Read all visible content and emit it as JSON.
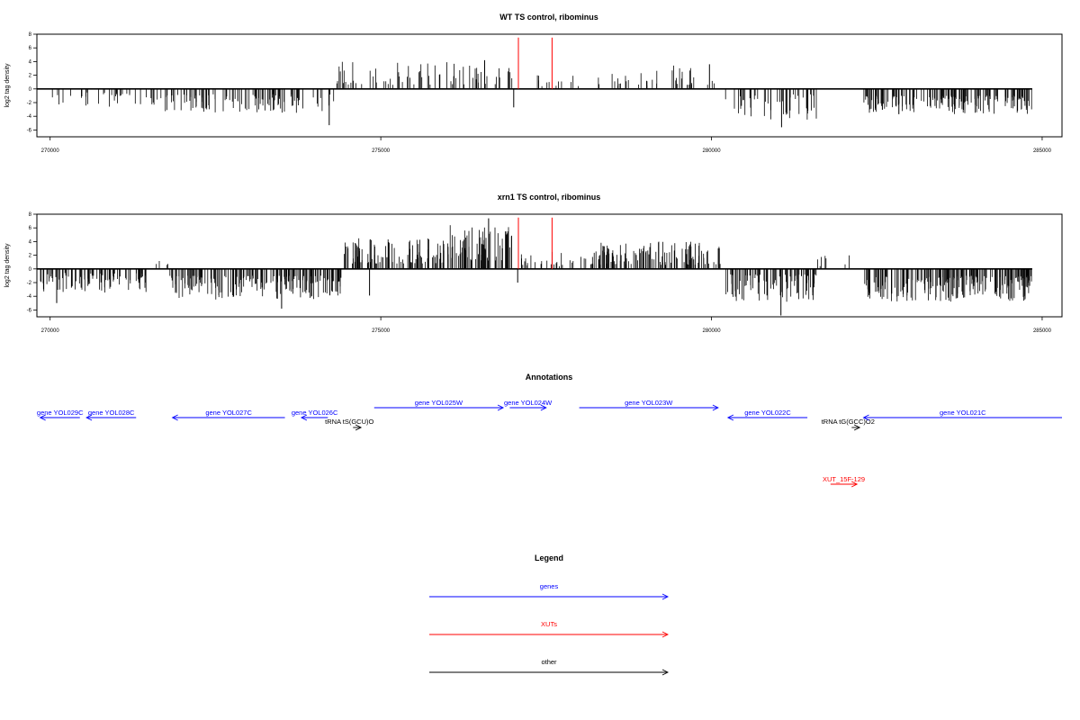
{
  "chart_data": [
    {
      "type": "bar",
      "title": "WT TS control, ribominus",
      "xlabel": "",
      "ylabel": "log2 tag density",
      "xlim": [
        269800,
        285300
      ],
      "ylim": [
        -7,
        8
      ],
      "x_ticks": [
        "270000",
        "275000",
        "280000",
        "285000"
      ],
      "y_ticks": [
        "8",
        "6",
        "4",
        "2",
        "0",
        "-2",
        "-4",
        "-6"
      ],
      "baseline_range": [
        269800,
        284850
      ],
      "markers": [
        {
          "x": 277080,
          "color": "#ff0000"
        },
        {
          "x": 277590,
          "color": "#ff0000"
        }
      ],
      "segments": [
        {
          "from": 269850,
          "to": 271500,
          "sign": -1,
          "lo": 0.5,
          "hi": 2.6,
          "density": 0.25
        },
        {
          "from": 271500,
          "to": 274300,
          "sign": -1,
          "lo": 0.8,
          "hi": 3.5,
          "density": 0.55
        },
        {
          "from": 274300,
          "to": 277000,
          "sign": 1,
          "lo": 0.6,
          "hi": 4.0,
          "density": 0.35
        },
        {
          "from": 277100,
          "to": 279100,
          "sign": 1,
          "lo": 0.4,
          "hi": 2.4,
          "density": 0.2
        },
        {
          "from": 279100,
          "to": 280100,
          "sign": 1,
          "lo": 0.6,
          "hi": 3.5,
          "density": 0.3
        },
        {
          "from": 280200,
          "to": 281600,
          "sign": -1,
          "lo": 0.8,
          "hi": 4.5,
          "density": 0.45
        },
        {
          "from": 282300,
          "to": 284850,
          "sign": -1,
          "lo": 1.0,
          "hi": 3.8,
          "density": 0.9
        }
      ],
      "extra_bars": [
        {
          "x": 274220,
          "y": -5.3
        },
        {
          "x": 281060,
          "y": -5.6
        },
        {
          "x": 276570,
          "y": 4.2
        },
        {
          "x": 277010,
          "y": -2.7
        },
        {
          "x": 279970,
          "y": 3.6
        }
      ]
    },
    {
      "type": "bar",
      "title": "xrn1 TS control, ribominus",
      "xlabel": "",
      "ylabel": "log2 tag density",
      "xlim": [
        269800,
        285300
      ],
      "ylim": [
        -7,
        8
      ],
      "x_ticks": [
        "270000",
        "275000",
        "280000",
        "285000"
      ],
      "y_ticks": [
        "8",
        "6",
        "4",
        "2",
        "0",
        "-2",
        "-4",
        "-6"
      ],
      "baseline_range": [
        269800,
        284850
      ],
      "markers": [
        {
          "x": 277080,
          "color": "#ff0000"
        },
        {
          "x": 277590,
          "color": "#ff0000"
        }
      ],
      "segments": [
        {
          "from": 269850,
          "to": 271500,
          "sign": -1,
          "lo": 0.6,
          "hi": 3.6,
          "density": 0.75
        },
        {
          "from": 271600,
          "to": 271800,
          "sign": 1,
          "lo": 0.4,
          "hi": 1.2,
          "density": 0.3
        },
        {
          "from": 271800,
          "to": 274400,
          "sign": -1,
          "lo": 1.0,
          "hi": 4.5,
          "density": 1.0
        },
        {
          "from": 274400,
          "to": 276000,
          "sign": 1,
          "lo": 0.8,
          "hi": 4.5,
          "density": 0.85
        },
        {
          "from": 276000,
          "to": 277000,
          "sign": 1,
          "lo": 1.2,
          "hi": 6.5,
          "density": 1.0
        },
        {
          "from": 277100,
          "to": 278200,
          "sign": 1,
          "lo": 0.4,
          "hi": 2.5,
          "density": 0.35
        },
        {
          "from": 278200,
          "to": 280150,
          "sign": 1,
          "lo": 0.6,
          "hi": 4.0,
          "density": 0.8
        },
        {
          "from": 280200,
          "to": 281600,
          "sign": -1,
          "lo": 0.8,
          "hi": 4.8,
          "density": 0.85
        },
        {
          "from": 281600,
          "to": 282100,
          "sign": 1,
          "lo": 0.3,
          "hi": 2.0,
          "density": 0.2
        },
        {
          "from": 282300,
          "to": 284850,
          "sign": -1,
          "lo": 1.0,
          "hi": 4.8,
          "density": 1.1
        }
      ],
      "extra_bars": [
        {
          "x": 276630,
          "y": 7.4
        },
        {
          "x": 281050,
          "y": -6.8
        },
        {
          "x": 270100,
          "y": -5.0
        },
        {
          "x": 273500,
          "y": -5.8
        },
        {
          "x": 274830,
          "y": -3.9
        },
        {
          "x": 277070,
          "y": -2.0
        }
      ]
    }
  ],
  "annotations": {
    "title": "Annotations",
    "xlim": [
      269800,
      285300
    ],
    "features": [
      {
        "label": "gene YOL029C",
        "start": 269850,
        "end": 270450,
        "strand": "-",
        "row": 0,
        "color": "#0000ff"
      },
      {
        "label": "gene YOL028C",
        "start": 270550,
        "end": 271300,
        "strand": "-",
        "row": 0,
        "color": "#0000ff"
      },
      {
        "label": "gene YOL027C",
        "start": 271850,
        "end": 273550,
        "strand": "-",
        "row": 0,
        "color": "#0000ff"
      },
      {
        "label": "gene YOL026C",
        "start": 273800,
        "end": 274200,
        "strand": "-",
        "row": 0,
        "color": "#0000ff"
      },
      {
        "label": "tRNA tS(GCU)O",
        "start": 274580,
        "end": 274700,
        "strand": "+",
        "row": 1,
        "color": "#000000"
      },
      {
        "label": "gene YOL025W",
        "start": 274900,
        "end": 276850,
        "strand": "+",
        "row": -1,
        "color": "#0000ff"
      },
      {
        "label": "gene YOL024W",
        "start": 276950,
        "end": 277500,
        "strand": "+",
        "row": -1,
        "color": "#0000ff"
      },
      {
        "label": "gene YOL023W",
        "start": 278000,
        "end": 280100,
        "strand": "+",
        "row": -1,
        "color": "#0000ff"
      },
      {
        "label": "gene YOL022C",
        "start": 280250,
        "end": 281450,
        "strand": "-",
        "row": 0,
        "color": "#0000ff"
      },
      {
        "label": "tRNA tG(GCC)O2",
        "start": 282120,
        "end": 282240,
        "strand": "+",
        "row": 1,
        "color": "#000000"
      },
      {
        "label": "gene YOL021C",
        "start": 282300,
        "end": 285300,
        "strand": "-",
        "row": 0,
        "color": "#0000ff"
      },
      {
        "label": "XUT_15F-129",
        "start": 281800,
        "end": 282200,
        "strand": "+",
        "row": 4,
        "color": "#ff0000"
      }
    ]
  },
  "legend": {
    "title": "Legend",
    "items": [
      {
        "label": "genes",
        "color": "#0000ff"
      },
      {
        "label": "XUTs",
        "color": "#ff0000"
      },
      {
        "label": "other",
        "color": "#000000"
      }
    ]
  }
}
